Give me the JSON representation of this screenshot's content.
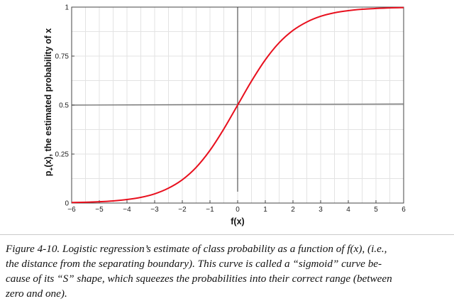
{
  "chart_data": {
    "type": "line",
    "title": "",
    "xlabel": "f(x)",
    "ylabel_main": "p",
    "ylabel_sub": "+",
    "ylabel_rest": "(x), the estimated probability of x",
    "xlim": [
      -6,
      6
    ],
    "ylim": [
      0,
      1
    ],
    "x_ticks": [
      -6,
      -5,
      -4,
      -3,
      -2,
      -1,
      0,
      1,
      2,
      3,
      4,
      5,
      6
    ],
    "y_ticks": [
      0,
      0.25,
      0.5,
      0.75,
      1
    ],
    "y_tick_labels": [
      "0",
      "0.25",
      "0.5",
      "0.75",
      "1"
    ],
    "x_tick_labels": [
      "−6",
      "−5",
      "−4",
      "−3",
      "−2",
      "−1",
      "0",
      "1",
      "2",
      "3",
      "4",
      "5",
      "6"
    ],
    "grid": true,
    "series": [
      {
        "color": "#e8101e",
        "x": [
          -6,
          -5.5,
          -5,
          -4.5,
          -4,
          -3.5,
          -3,
          -2.5,
          -2,
          -1.5,
          -1,
          -0.5,
          0,
          0.5,
          1,
          1.5,
          2,
          2.5,
          3,
          3.5,
          4,
          4.5,
          5,
          5.5,
          6
        ],
        "values": [
          0.0025,
          0.0041,
          0.0067,
          0.011,
          0.018,
          0.029,
          0.047,
          0.076,
          0.119,
          0.182,
          0.269,
          0.378,
          0.5,
          0.622,
          0.731,
          0.818,
          0.881,
          0.924,
          0.953,
          0.971,
          0.982,
          0.989,
          0.993,
          0.996,
          0.9975
        ]
      }
    ],
    "reference_lines": {
      "horizontal_y": 0.5,
      "vertical_x": 0,
      "color": "#777777"
    }
  },
  "caption": {
    "lines": [
      "Figure 4-10. Logistic regression’s estimate of class probability as a function of f(x), (i.e.,",
      "the distance from the separating boundary). This curve is called a “sigmoid” curve be-",
      "cause of its “S” shape, which squeezes the probabilities into their correct range (between",
      "zero and one)."
    ]
  }
}
